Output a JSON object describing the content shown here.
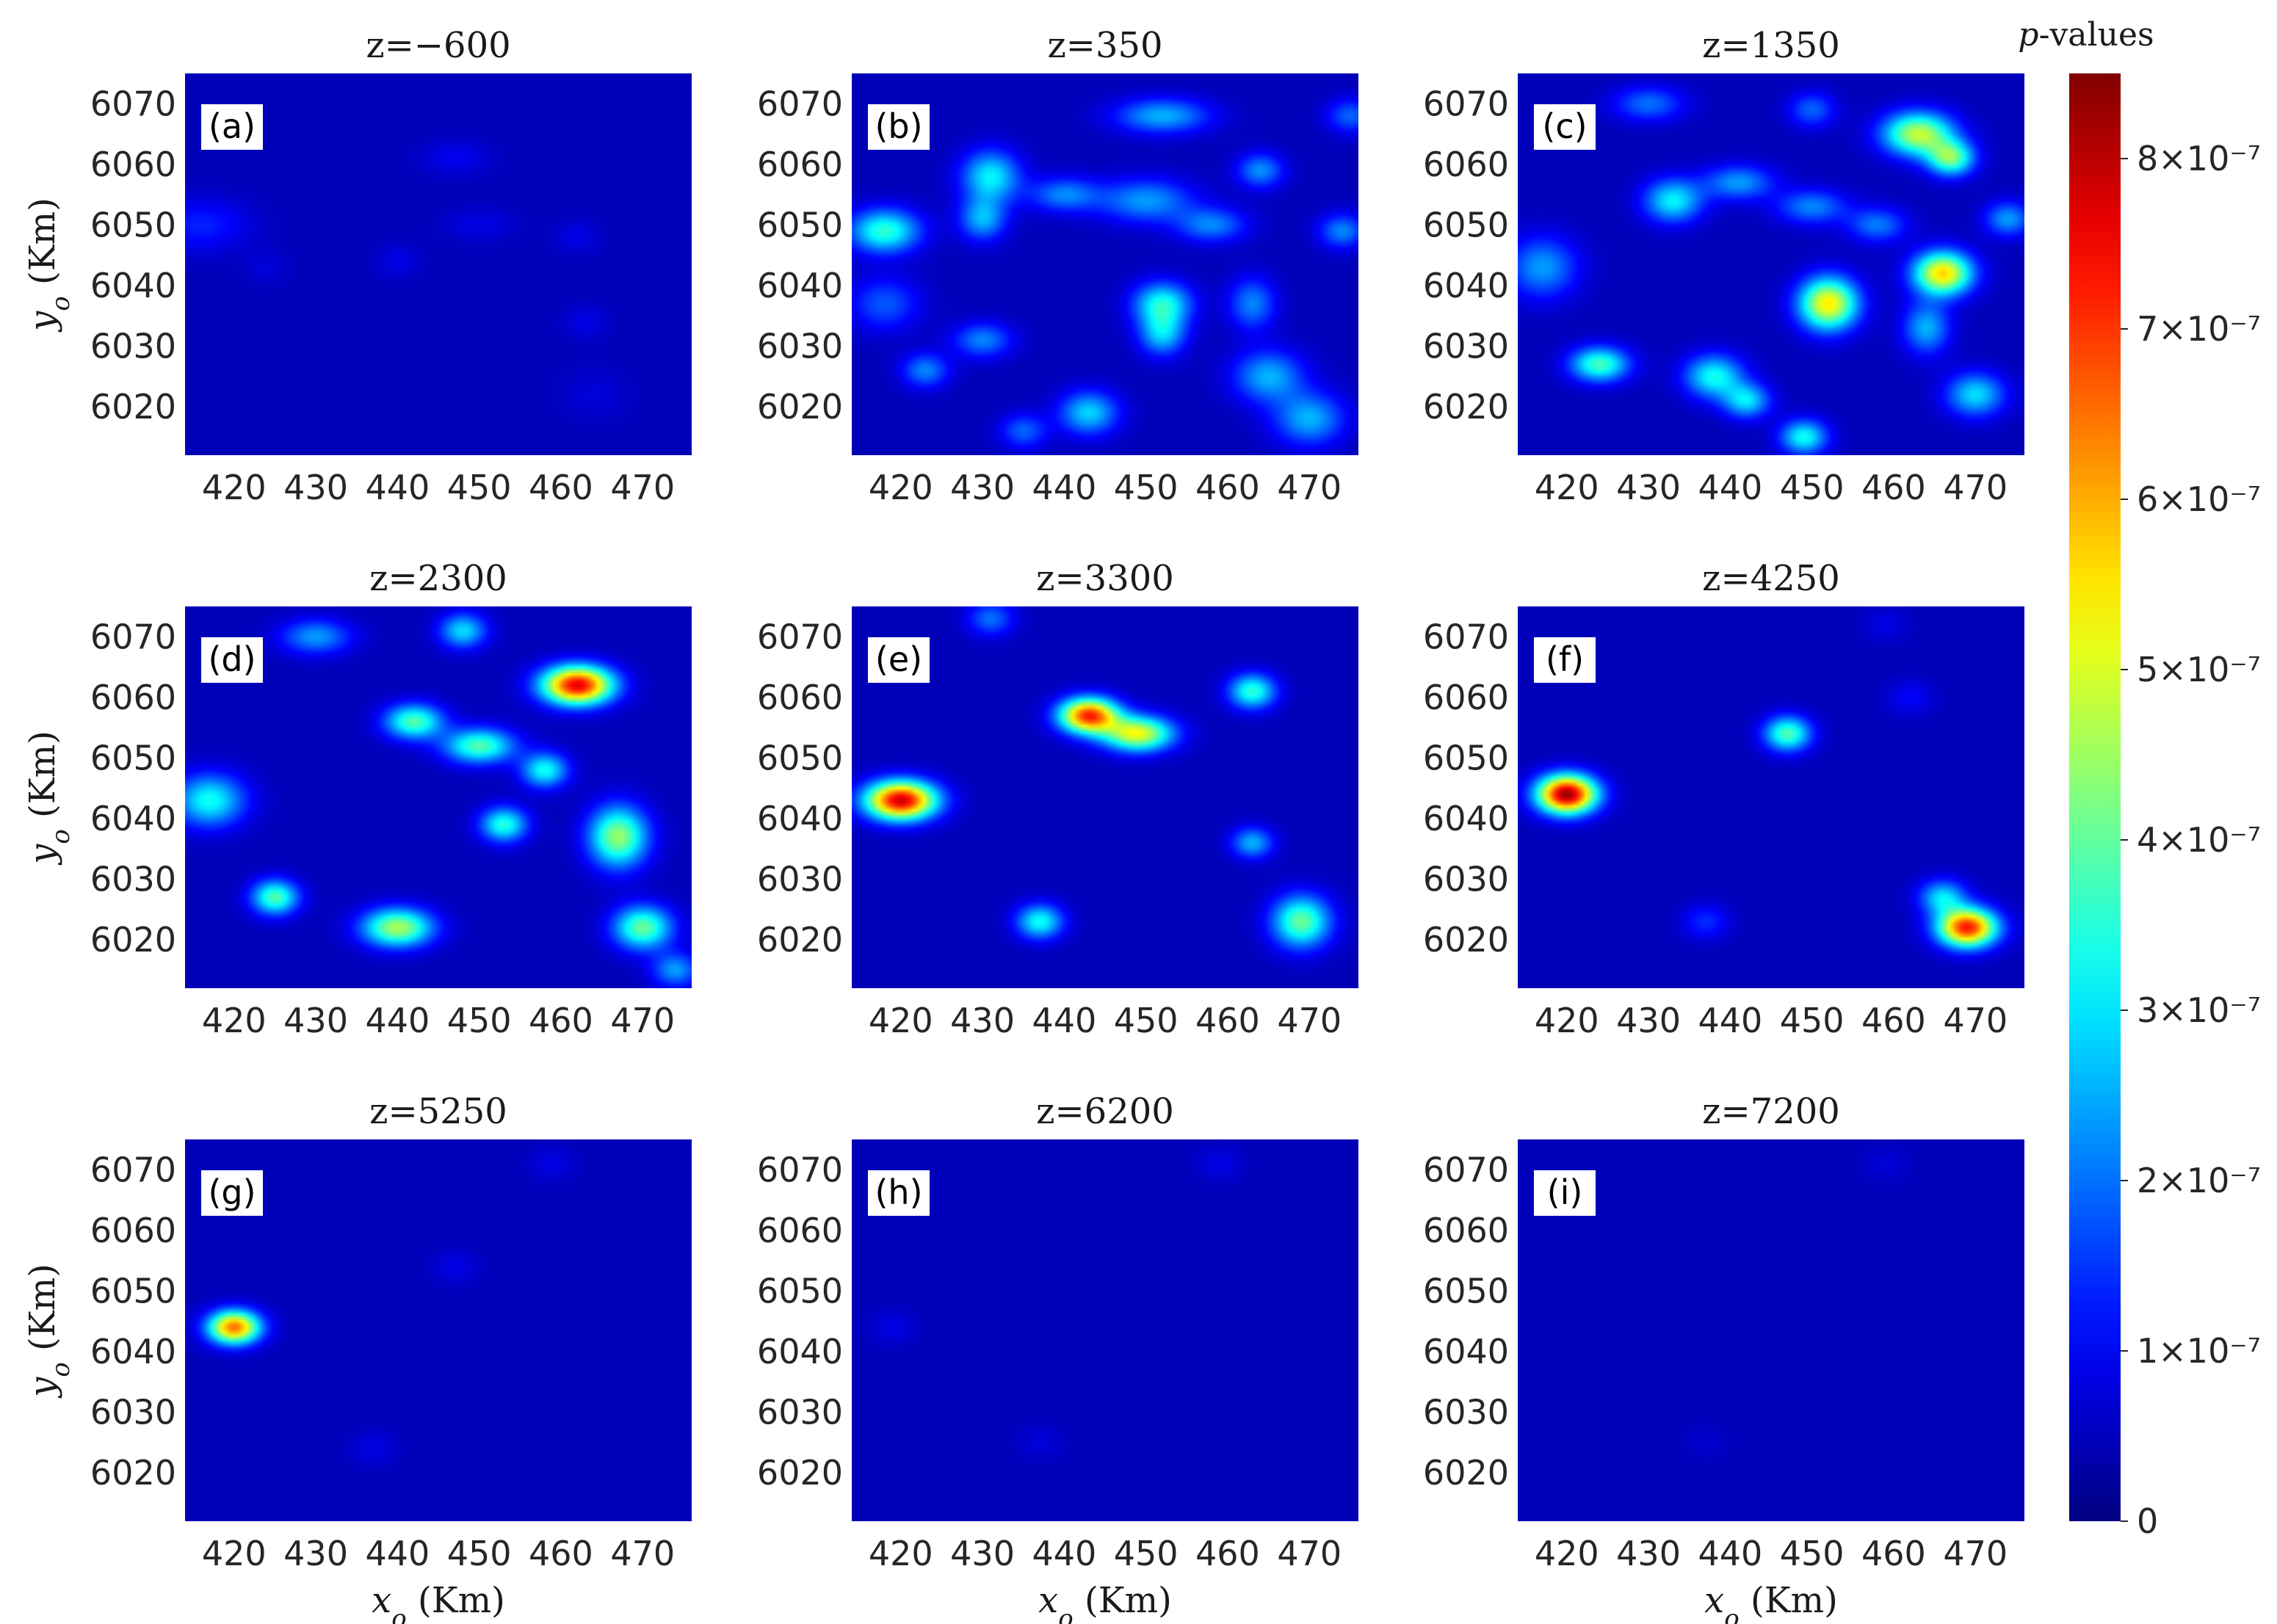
{
  "chart_data": {
    "type": "heatmap",
    "xlabel": "x_o (Km)",
    "ylabel": "y_o (Km)",
    "xticks": [
      420,
      430,
      440,
      450,
      460,
      470
    ],
    "yticks": [
      6020,
      6030,
      6040,
      6050,
      6060,
      6070
    ],
    "xlim": [
      414,
      476
    ],
    "ylim": [
      6012,
      6075
    ],
    "colorbar": {
      "title": "p-values",
      "min": 0,
      "max": 8.5e-07,
      "ticks": [
        {
          "value": 0,
          "label": "0"
        },
        {
          "value": 1e-07,
          "label": "1×10⁻⁷"
        },
        {
          "value": 2e-07,
          "label": "2×10⁻⁷"
        },
        {
          "value": 3e-07,
          "label": "3×10⁻⁷"
        },
        {
          "value": 4e-07,
          "label": "4×10⁻⁷"
        },
        {
          "value": 5e-07,
          "label": "5×10⁻⁷"
        },
        {
          "value": 6e-07,
          "label": "6×10⁻⁷"
        },
        {
          "value": 7e-07,
          "label": "7×10⁻⁷"
        },
        {
          "value": 8e-07,
          "label": "8×10⁻⁷"
        }
      ]
    },
    "panels": [
      {
        "label": "(a)",
        "title": "z=−600",
        "blobs": [
          {
            "x": 416,
            "y": 6050,
            "v": 9e-08,
            "sx": 4,
            "sy": 3
          },
          {
            "x": 447,
            "y": 6061,
            "v": 5e-08,
            "sx": 3,
            "sy": 2
          },
          {
            "x": 450,
            "y": 6050,
            "v": 4e-08,
            "sx": 3,
            "sy": 2
          },
          {
            "x": 440,
            "y": 6044,
            "v": 4e-08,
            "sx": 2,
            "sy": 2
          },
          {
            "x": 462,
            "y": 6048,
            "v": 4e-08,
            "sx": 2,
            "sy": 2
          },
          {
            "x": 463,
            "y": 6034,
            "v": 4e-08,
            "sx": 2,
            "sy": 2
          },
          {
            "x": 464,
            "y": 6022,
            "v": 3e-08,
            "sx": 3,
            "sy": 3
          },
          {
            "x": 424,
            "y": 6043,
            "v": 3e-08,
            "sx": 2,
            "sy": 2
          }
        ]
      },
      {
        "label": "(b)",
        "title": "z=350",
        "blobs": [
          {
            "x": 418,
            "y": 6049,
            "v": 3.3e-07,
            "sx": 3,
            "sy": 2.5
          },
          {
            "x": 431,
            "y": 6058,
            "v": 2.8e-07,
            "sx": 2.5,
            "sy": 3
          },
          {
            "x": 430,
            "y": 6051,
            "v": 2.2e-07,
            "sx": 2,
            "sy": 2.5
          },
          {
            "x": 440,
            "y": 6055,
            "v": 1.8e-07,
            "sx": 3,
            "sy": 2
          },
          {
            "x": 452,
            "y": 6068,
            "v": 2.2e-07,
            "sx": 4,
            "sy": 2
          },
          {
            "x": 450,
            "y": 6054,
            "v": 2e-07,
            "sx": 4,
            "sy": 2.5
          },
          {
            "x": 458,
            "y": 6050,
            "v": 1.8e-07,
            "sx": 3,
            "sy": 2
          },
          {
            "x": 464,
            "y": 6059,
            "v": 1.9e-07,
            "sx": 2,
            "sy": 2
          },
          {
            "x": 474,
            "y": 6049,
            "v": 1.8e-07,
            "sx": 2,
            "sy": 2
          },
          {
            "x": 475,
            "y": 6068,
            "v": 1.5e-07,
            "sx": 2,
            "sy": 2
          },
          {
            "x": 452,
            "y": 6037,
            "v": 3e-07,
            "sx": 2.5,
            "sy": 2.5
          },
          {
            "x": 452,
            "y": 6032,
            "v": 2.4e-07,
            "sx": 2,
            "sy": 2.5
          },
          {
            "x": 463,
            "y": 6037,
            "v": 1.8e-07,
            "sx": 2,
            "sy": 3
          },
          {
            "x": 465,
            "y": 6025,
            "v": 2.2e-07,
            "sx": 3,
            "sy": 3
          },
          {
            "x": 470,
            "y": 6018,
            "v": 2.2e-07,
            "sx": 3,
            "sy": 3
          },
          {
            "x": 430,
            "y": 6031,
            "v": 1.8e-07,
            "sx": 2.5,
            "sy": 2
          },
          {
            "x": 423,
            "y": 6026,
            "v": 1.8e-07,
            "sx": 2,
            "sy": 2
          },
          {
            "x": 443,
            "y": 6019,
            "v": 2.5e-07,
            "sx": 2.5,
            "sy": 2.5
          },
          {
            "x": 435,
            "y": 6016,
            "v": 1.5e-07,
            "sx": 2,
            "sy": 2
          },
          {
            "x": 418,
            "y": 6037,
            "v": 1.4e-07,
            "sx": 3,
            "sy": 3
          }
        ]
      },
      {
        "label": "(c)",
        "title": "z=1350",
        "blobs": [
          {
            "x": 463,
            "y": 6065,
            "v": 4.6e-07,
            "sx": 3,
            "sy": 2.5
          },
          {
            "x": 467,
            "y": 6061,
            "v": 3.8e-07,
            "sx": 2,
            "sy": 2
          },
          {
            "x": 433,
            "y": 6054,
            "v": 2.8e-07,
            "sx": 2.5,
            "sy": 2.5
          },
          {
            "x": 441,
            "y": 6057,
            "v": 2e-07,
            "sx": 3,
            "sy": 2
          },
          {
            "x": 450,
            "y": 6053,
            "v": 1.8e-07,
            "sx": 3,
            "sy": 2
          },
          {
            "x": 458,
            "y": 6050,
            "v": 1.7e-07,
            "sx": 2.5,
            "sy": 2
          },
          {
            "x": 417,
            "y": 6043,
            "v": 2e-07,
            "sx": 3,
            "sy": 3.5
          },
          {
            "x": 452,
            "y": 6037,
            "v": 5.3e-07,
            "sx": 2.5,
            "sy": 3
          },
          {
            "x": 466,
            "y": 6042,
            "v": 5.5e-07,
            "sx": 2.5,
            "sy": 2.5
          },
          {
            "x": 464,
            "y": 6033,
            "v": 2.2e-07,
            "sx": 2,
            "sy": 3
          },
          {
            "x": 470,
            "y": 6022,
            "v": 2.6e-07,
            "sx": 2.5,
            "sy": 2.5
          },
          {
            "x": 424,
            "y": 6027,
            "v": 3.5e-07,
            "sx": 2.5,
            "sy": 2
          },
          {
            "x": 438,
            "y": 6025,
            "v": 3e-07,
            "sx": 2.5,
            "sy": 2.5
          },
          {
            "x": 442,
            "y": 6021,
            "v": 2.6e-07,
            "sx": 2,
            "sy": 2
          },
          {
            "x": 449,
            "y": 6015,
            "v": 3e-07,
            "sx": 2,
            "sy": 2
          },
          {
            "x": 474,
            "y": 6051,
            "v": 2e-07,
            "sx": 2,
            "sy": 2
          },
          {
            "x": 430,
            "y": 6070,
            "v": 1.6e-07,
            "sx": 3,
            "sy": 2
          },
          {
            "x": 450,
            "y": 6069,
            "v": 1.5e-07,
            "sx": 2,
            "sy": 2
          }
        ]
      },
      {
        "label": "(d)",
        "title": "z=2300",
        "blobs": [
          {
            "x": 462,
            "y": 6062,
            "v": 7.6e-07,
            "sx": 3,
            "sy": 2.2
          },
          {
            "x": 442,
            "y": 6056,
            "v": 3.6e-07,
            "sx": 2.5,
            "sy": 2
          },
          {
            "x": 450,
            "y": 6052,
            "v": 3.6e-07,
            "sx": 3,
            "sy": 2
          },
          {
            "x": 458,
            "y": 6048,
            "v": 3e-07,
            "sx": 2,
            "sy": 2
          },
          {
            "x": 448,
            "y": 6071,
            "v": 2.6e-07,
            "sx": 2,
            "sy": 2
          },
          {
            "x": 430,
            "y": 6070,
            "v": 2e-07,
            "sx": 3,
            "sy": 2
          },
          {
            "x": 417,
            "y": 6043,
            "v": 3e-07,
            "sx": 3,
            "sy": 3
          },
          {
            "x": 453,
            "y": 6039,
            "v": 3.2e-07,
            "sx": 2,
            "sy": 2
          },
          {
            "x": 467,
            "y": 6037,
            "v": 4.2e-07,
            "sx": 2.5,
            "sy": 3.5
          },
          {
            "x": 470,
            "y": 6022,
            "v": 3.8e-07,
            "sx": 2.5,
            "sy": 2.5
          },
          {
            "x": 425,
            "y": 6027,
            "v": 3.6e-07,
            "sx": 2,
            "sy": 2
          },
          {
            "x": 440,
            "y": 6022,
            "v": 4.4e-07,
            "sx": 3,
            "sy": 2.2
          },
          {
            "x": 474,
            "y": 6015,
            "v": 2e-07,
            "sx": 2,
            "sy": 2
          }
        ]
      },
      {
        "label": "(e)",
        "title": "z=3300",
        "blobs": [
          {
            "x": 420,
            "y": 6043,
            "v": 7.8e-07,
            "sx": 3,
            "sy": 2.2
          },
          {
            "x": 443,
            "y": 6057,
            "v": 7e-07,
            "sx": 2.5,
            "sy": 2
          },
          {
            "x": 449,
            "y": 6054,
            "v": 5e-07,
            "sx": 3,
            "sy": 2
          },
          {
            "x": 463,
            "y": 6061,
            "v": 3.3e-07,
            "sx": 2,
            "sy": 2
          },
          {
            "x": 463,
            "y": 6036,
            "v": 2.2e-07,
            "sx": 1.8,
            "sy": 1.8
          },
          {
            "x": 469,
            "y": 6023,
            "v": 3.8e-07,
            "sx": 2.5,
            "sy": 3
          },
          {
            "x": 437,
            "y": 6023,
            "v": 3e-07,
            "sx": 2,
            "sy": 2
          },
          {
            "x": 431,
            "y": 6073,
            "v": 1.6e-07,
            "sx": 2,
            "sy": 2
          }
        ]
      },
      {
        "label": "(f)",
        "title": "z=4250",
        "blobs": [
          {
            "x": 420,
            "y": 6044,
            "v": 8.3e-07,
            "sx": 2.5,
            "sy": 2.2
          },
          {
            "x": 469,
            "y": 6022,
            "v": 7.2e-07,
            "sx": 2.5,
            "sy": 2.2
          },
          {
            "x": 466,
            "y": 6027,
            "v": 2.6e-07,
            "sx": 2,
            "sy": 2
          },
          {
            "x": 447,
            "y": 6054,
            "v": 3.6e-07,
            "sx": 2,
            "sy": 2
          },
          {
            "x": 437,
            "y": 6023,
            "v": 1e-07,
            "sx": 2,
            "sy": 2
          },
          {
            "x": 462,
            "y": 6060,
            "v": 6e-08,
            "sx": 2,
            "sy": 2
          },
          {
            "x": 459,
            "y": 6072,
            "v": 4e-08,
            "sx": 2,
            "sy": 2
          }
        ]
      },
      {
        "label": "(g)",
        "title": "z=5250",
        "blobs": [
          {
            "x": 420,
            "y": 6044,
            "v": 6.4e-07,
            "sx": 2.2,
            "sy": 1.9
          },
          {
            "x": 447,
            "y": 6054,
            "v": 4e-08,
            "sx": 2,
            "sy": 2
          },
          {
            "x": 437,
            "y": 6024,
            "v": 4e-08,
            "sx": 2,
            "sy": 2
          },
          {
            "x": 459,
            "y": 6071,
            "v": 4e-08,
            "sx": 2,
            "sy": 2
          }
        ]
      },
      {
        "label": "(h)",
        "title": "z=6200",
        "blobs": [
          {
            "x": 419,
            "y": 6044,
            "v": 4e-08,
            "sx": 2,
            "sy": 2
          },
          {
            "x": 437,
            "y": 6025,
            "v": 3e-08,
            "sx": 2,
            "sy": 2
          },
          {
            "x": 459,
            "y": 6071,
            "v": 4e-08,
            "sx": 2,
            "sy": 2
          }
        ]
      },
      {
        "label": "(i)",
        "title": "z=7200",
        "blobs": [
          {
            "x": 437,
            "y": 6025,
            "v": 2e-08,
            "sx": 2,
            "sy": 2
          },
          {
            "x": 459,
            "y": 6071,
            "v": 3e-08,
            "sx": 2,
            "sy": 2
          }
        ]
      }
    ]
  }
}
